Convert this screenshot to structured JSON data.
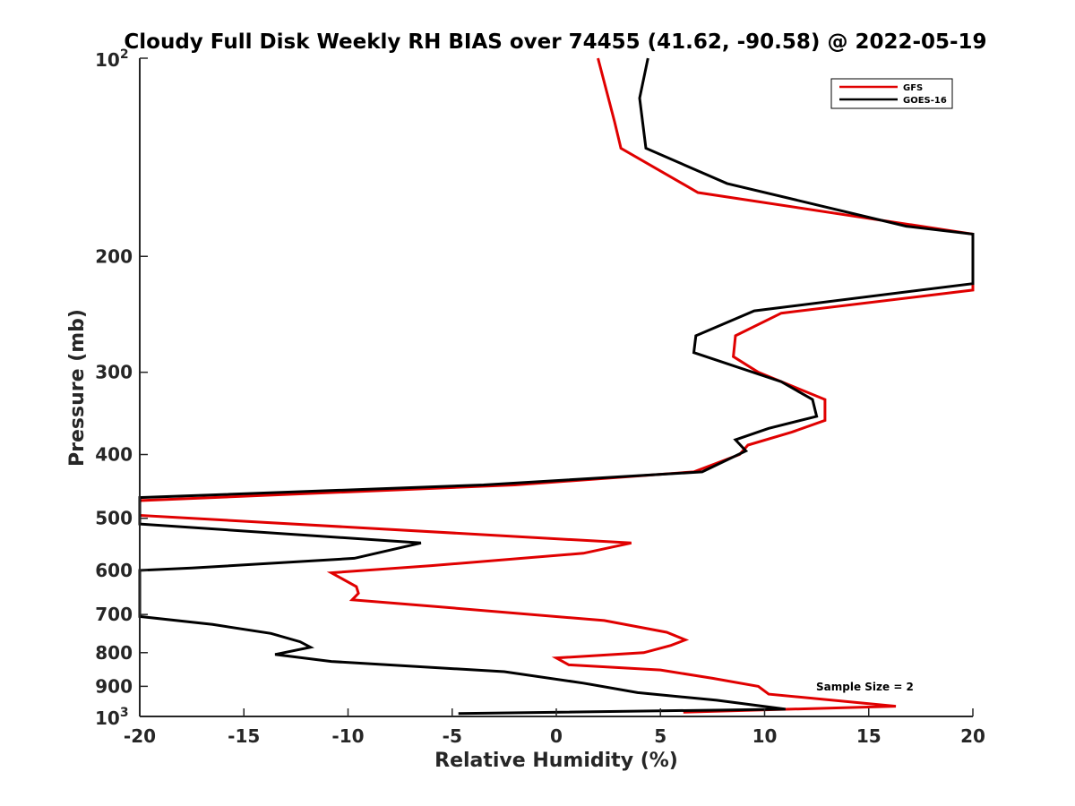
{
  "chart_data": {
    "type": "line",
    "title": "Cloudy Full Disk Weekly RH BIAS over 74455 (41.62, -90.58) @ 2022-05-19",
    "xlabel": "Relative Humidity (%)",
    "ylabel": "Pressure (mb)",
    "xlim": [
      -20,
      20
    ],
    "ylim": [
      100,
      1000
    ],
    "y_scale": "log",
    "y_reversed": true,
    "x_ticks": [
      "-20",
      "-15",
      "-10",
      "-5",
      "0",
      "5",
      "10",
      "15",
      "20"
    ],
    "y_ticks": [
      {
        "value": 100,
        "label": "10",
        "sup": "2"
      },
      {
        "value": 200,
        "label": "200"
      },
      {
        "value": 300,
        "label": "300"
      },
      {
        "value": 400,
        "label": "400"
      },
      {
        "value": 500,
        "label": "500"
      },
      {
        "value": 600,
        "label": "600"
      },
      {
        "value": 700,
        "label": "700"
      },
      {
        "value": 800,
        "label": "800"
      },
      {
        "value": 900,
        "label": "900"
      },
      {
        "value": 1000,
        "label": "10",
        "sup": "3"
      }
    ],
    "grid": false,
    "legend_position": "top-right",
    "annotation": "Sample Size = 2",
    "series": [
      {
        "name": "GFS",
        "color": "#e00000",
        "points": [
          [
            2.0,
            100
          ],
          [
            2.8,
            125
          ],
          [
            3.1,
            137
          ],
          [
            6.8,
            160
          ],
          [
            20,
            185
          ],
          [
            20,
            225
          ],
          [
            10.8,
            244
          ],
          [
            8.6,
            264
          ],
          [
            8.5,
            284
          ],
          [
            9.7,
            300
          ],
          [
            12.9,
            330
          ],
          [
            12.9,
            355
          ],
          [
            11.3,
            370
          ],
          [
            9.2,
            387
          ],
          [
            8.8,
            400
          ],
          [
            6.6,
            425
          ],
          [
            -2,
            445
          ],
          [
            -20,
            470
          ],
          [
            -20,
            495
          ],
          [
            3.6,
            545
          ],
          [
            1.3,
            565
          ],
          [
            -6,
            590
          ],
          [
            -10.8,
            605
          ],
          [
            -9.6,
            635
          ],
          [
            -9.5,
            650
          ],
          [
            -9.8,
            665
          ],
          [
            -6,
            680
          ],
          [
            2.3,
            715
          ],
          [
            5.3,
            745
          ],
          [
            6.2,
            765
          ],
          [
            5.5,
            780
          ],
          [
            4.2,
            800
          ],
          [
            0.0,
            815
          ],
          [
            0.6,
            835
          ],
          [
            5.0,
            850
          ],
          [
            7.5,
            875
          ],
          [
            9.7,
            900
          ],
          [
            10.2,
            925
          ],
          [
            16.3,
            965
          ],
          [
            6.1,
            985
          ]
        ]
      },
      {
        "name": "GOES-16",
        "color": "#000000",
        "points": [
          [
            4.4,
            100
          ],
          [
            4.0,
            115
          ],
          [
            4.3,
            137
          ],
          [
            8.2,
            155
          ],
          [
            16.8,
            180
          ],
          [
            20,
            185
          ],
          [
            20,
            220
          ],
          [
            9.5,
            242
          ],
          [
            6.7,
            264
          ],
          [
            6.6,
            280
          ],
          [
            10.8,
            310
          ],
          [
            12.3,
            330
          ],
          [
            12.5,
            350
          ],
          [
            10.2,
            365
          ],
          [
            8.6,
            380
          ],
          [
            9.1,
            395
          ],
          [
            7.0,
            425
          ],
          [
            -3.5,
            445
          ],
          [
            -20,
            465
          ],
          [
            -20,
            510
          ],
          [
            -6.5,
            545
          ],
          [
            -9.7,
            575
          ],
          [
            -17.5,
            595
          ],
          [
            -20,
            600
          ],
          [
            -20,
            705
          ],
          [
            -16.5,
            725
          ],
          [
            -13.7,
            748
          ],
          [
            -12.3,
            770
          ],
          [
            -11.8,
            785
          ],
          [
            -13.5,
            805
          ],
          [
            -10.8,
            825
          ],
          [
            -2.5,
            855
          ],
          [
            1.3,
            890
          ],
          [
            3.9,
            920
          ],
          [
            7.7,
            945
          ],
          [
            11.0,
            975
          ],
          [
            -4.7,
            990
          ]
        ]
      }
    ]
  }
}
